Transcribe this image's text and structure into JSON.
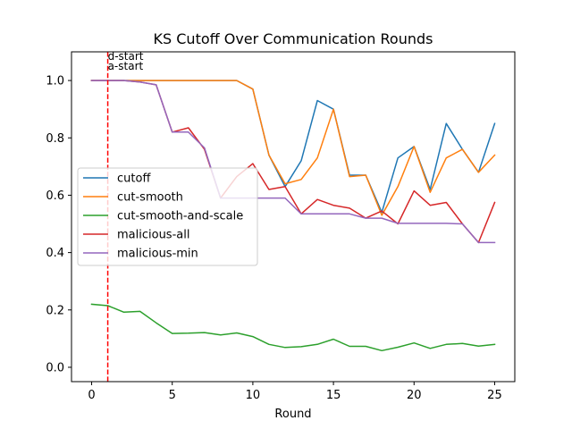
{
  "chart_data": {
    "type": "line",
    "title": "KS Cutoff Over Communication Rounds",
    "xlabel": "Round",
    "ylabel": "",
    "xlim": [
      -1.25,
      26.25
    ],
    "ylim": [
      -0.05,
      1.1
    ],
    "xticks": [
      0,
      5,
      10,
      15,
      20,
      25
    ],
    "yticks": [
      0.0,
      0.2,
      0.4,
      0.6,
      0.8,
      1.0
    ],
    "ytick_labels": [
      "0.0",
      "0.2",
      "0.4",
      "0.6",
      "0.8",
      "1.0"
    ],
    "grid": false,
    "legend_position": "center-left",
    "x": [
      0,
      1,
      2,
      3,
      4,
      5,
      6,
      7,
      8,
      9,
      10,
      11,
      12,
      13,
      14,
      15,
      16,
      17,
      18,
      19,
      20,
      21,
      22,
      23,
      24,
      25
    ],
    "series": [
      {
        "name": "cutoff",
        "color": "#1f77b4",
        "values": [
          1.0,
          1.0,
          1.0,
          1.0,
          1.0,
          1.0,
          1.0,
          1.0,
          1.0,
          1.0,
          0.97,
          0.74,
          0.63,
          0.72,
          0.93,
          0.9,
          0.67,
          0.67,
          0.54,
          0.73,
          0.77,
          0.62,
          0.85,
          0.76,
          0.68,
          0.85
        ]
      },
      {
        "name": "cut-smooth",
        "color": "#ff7f0e",
        "values": [
          1.0,
          1.0,
          1.0,
          1.0,
          1.0,
          1.0,
          1.0,
          1.0,
          1.0,
          1.0,
          0.97,
          0.74,
          0.64,
          0.655,
          0.73,
          0.9,
          0.665,
          0.67,
          0.53,
          0.63,
          0.77,
          0.61,
          0.73,
          0.76,
          0.68,
          0.74
        ]
      },
      {
        "name": "cut-smooth-and-scale",
        "color": "#2ca02c",
        "values": [
          0.22,
          0.215,
          0.192,
          0.195,
          0.155,
          0.118,
          0.119,
          0.121,
          0.113,
          0.12,
          0.107,
          0.08,
          0.069,
          0.072,
          0.08,
          0.098,
          0.073,
          0.073,
          0.058,
          0.07,
          0.085,
          0.066,
          0.08,
          0.083,
          0.074,
          0.08
        ]
      },
      {
        "name": "malicious-all",
        "color": "#d62728",
        "values": [
          1.0,
          1.0,
          1.0,
          0.995,
          0.985,
          0.82,
          0.835,
          0.76,
          0.59,
          0.665,
          0.71,
          0.62,
          0.63,
          0.535,
          0.585,
          0.565,
          0.555,
          0.52,
          0.545,
          0.5,
          0.615,
          0.565,
          0.575,
          0.5,
          0.435,
          0.575
        ]
      },
      {
        "name": "malicious-min",
        "color": "#9467bd",
        "values": [
          1.0,
          1.0,
          1.0,
          0.995,
          0.985,
          0.82,
          0.82,
          0.765,
          0.59,
          0.59,
          0.59,
          0.59,
          0.59,
          0.535,
          0.535,
          0.535,
          0.535,
          0.52,
          0.52,
          0.502,
          0.502,
          0.502,
          0.502,
          0.5,
          0.435,
          0.435
        ]
      }
    ],
    "annotations": [
      {
        "label": "d-start",
        "x": 1
      },
      {
        "label": "a-start",
        "x": 1
      }
    ],
    "vline": {
      "x": 1,
      "color": "#ff0000",
      "style": "dashed"
    }
  }
}
